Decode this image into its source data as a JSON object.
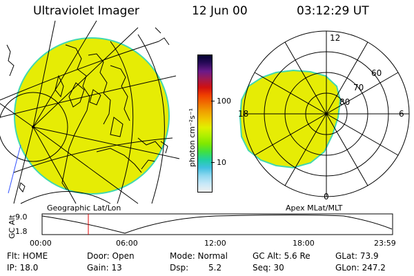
{
  "header": {
    "instrument": "Ultraviolet Imager",
    "date": "12 Jun 00",
    "time": "03:12:29 UT"
  },
  "colorbar": {
    "unit_label": "photon cm⁻²s⁻¹",
    "ticks": [
      "100",
      "10"
    ],
    "colors": [
      "#000030",
      "#2a0a5a",
      "#6a1a8a",
      "#a01a50",
      "#d01010",
      "#f04000",
      "#f07000",
      "#f0a000",
      "#f0c800",
      "#e0f000",
      "#b0f000",
      "#80e800",
      "#40e040",
      "#20d0a0",
      "#40c0e0",
      "#90d8f0",
      "#c8e8f8",
      "#f0f0f0"
    ]
  },
  "polar_plot": {
    "hour_labels": {
      "top": "12",
      "left": "18",
      "right": "6",
      "bottom": "0"
    },
    "lat_labels": [
      "60",
      "70",
      "80"
    ]
  },
  "panel_labels": {
    "geo": "Geographic Lat/Lon",
    "apex": "Apex MLat/MLT"
  },
  "altitude_plot": {
    "axis_title": "GC Alt",
    "y_ticks": [
      "9.0",
      "1.8"
    ],
    "x_ticks": [
      "00:00",
      "06:00",
      "12:00",
      "18:00",
      "23:59"
    ]
  },
  "info": {
    "row1": {
      "flt": "Flt: HOME",
      "door": "Door: Open",
      "mode": "Mode: Normal",
      "gc_alt": "GC Alt: 5.6 Re",
      "glat": "GLat: 73.9"
    },
    "row2": {
      "ip": "IP: 18.0",
      "gain": "Gain: 13",
      "dsp_label": "Dsp:",
      "dsp_value": "5.2",
      "seq": "Seq: 30",
      "glon": "GLon: 247.2"
    }
  },
  "colors": {
    "auroral_fill": "#e6ec05",
    "edge": "#40d8b0",
    "marker": "#e00000",
    "lines": "#000000"
  }
}
